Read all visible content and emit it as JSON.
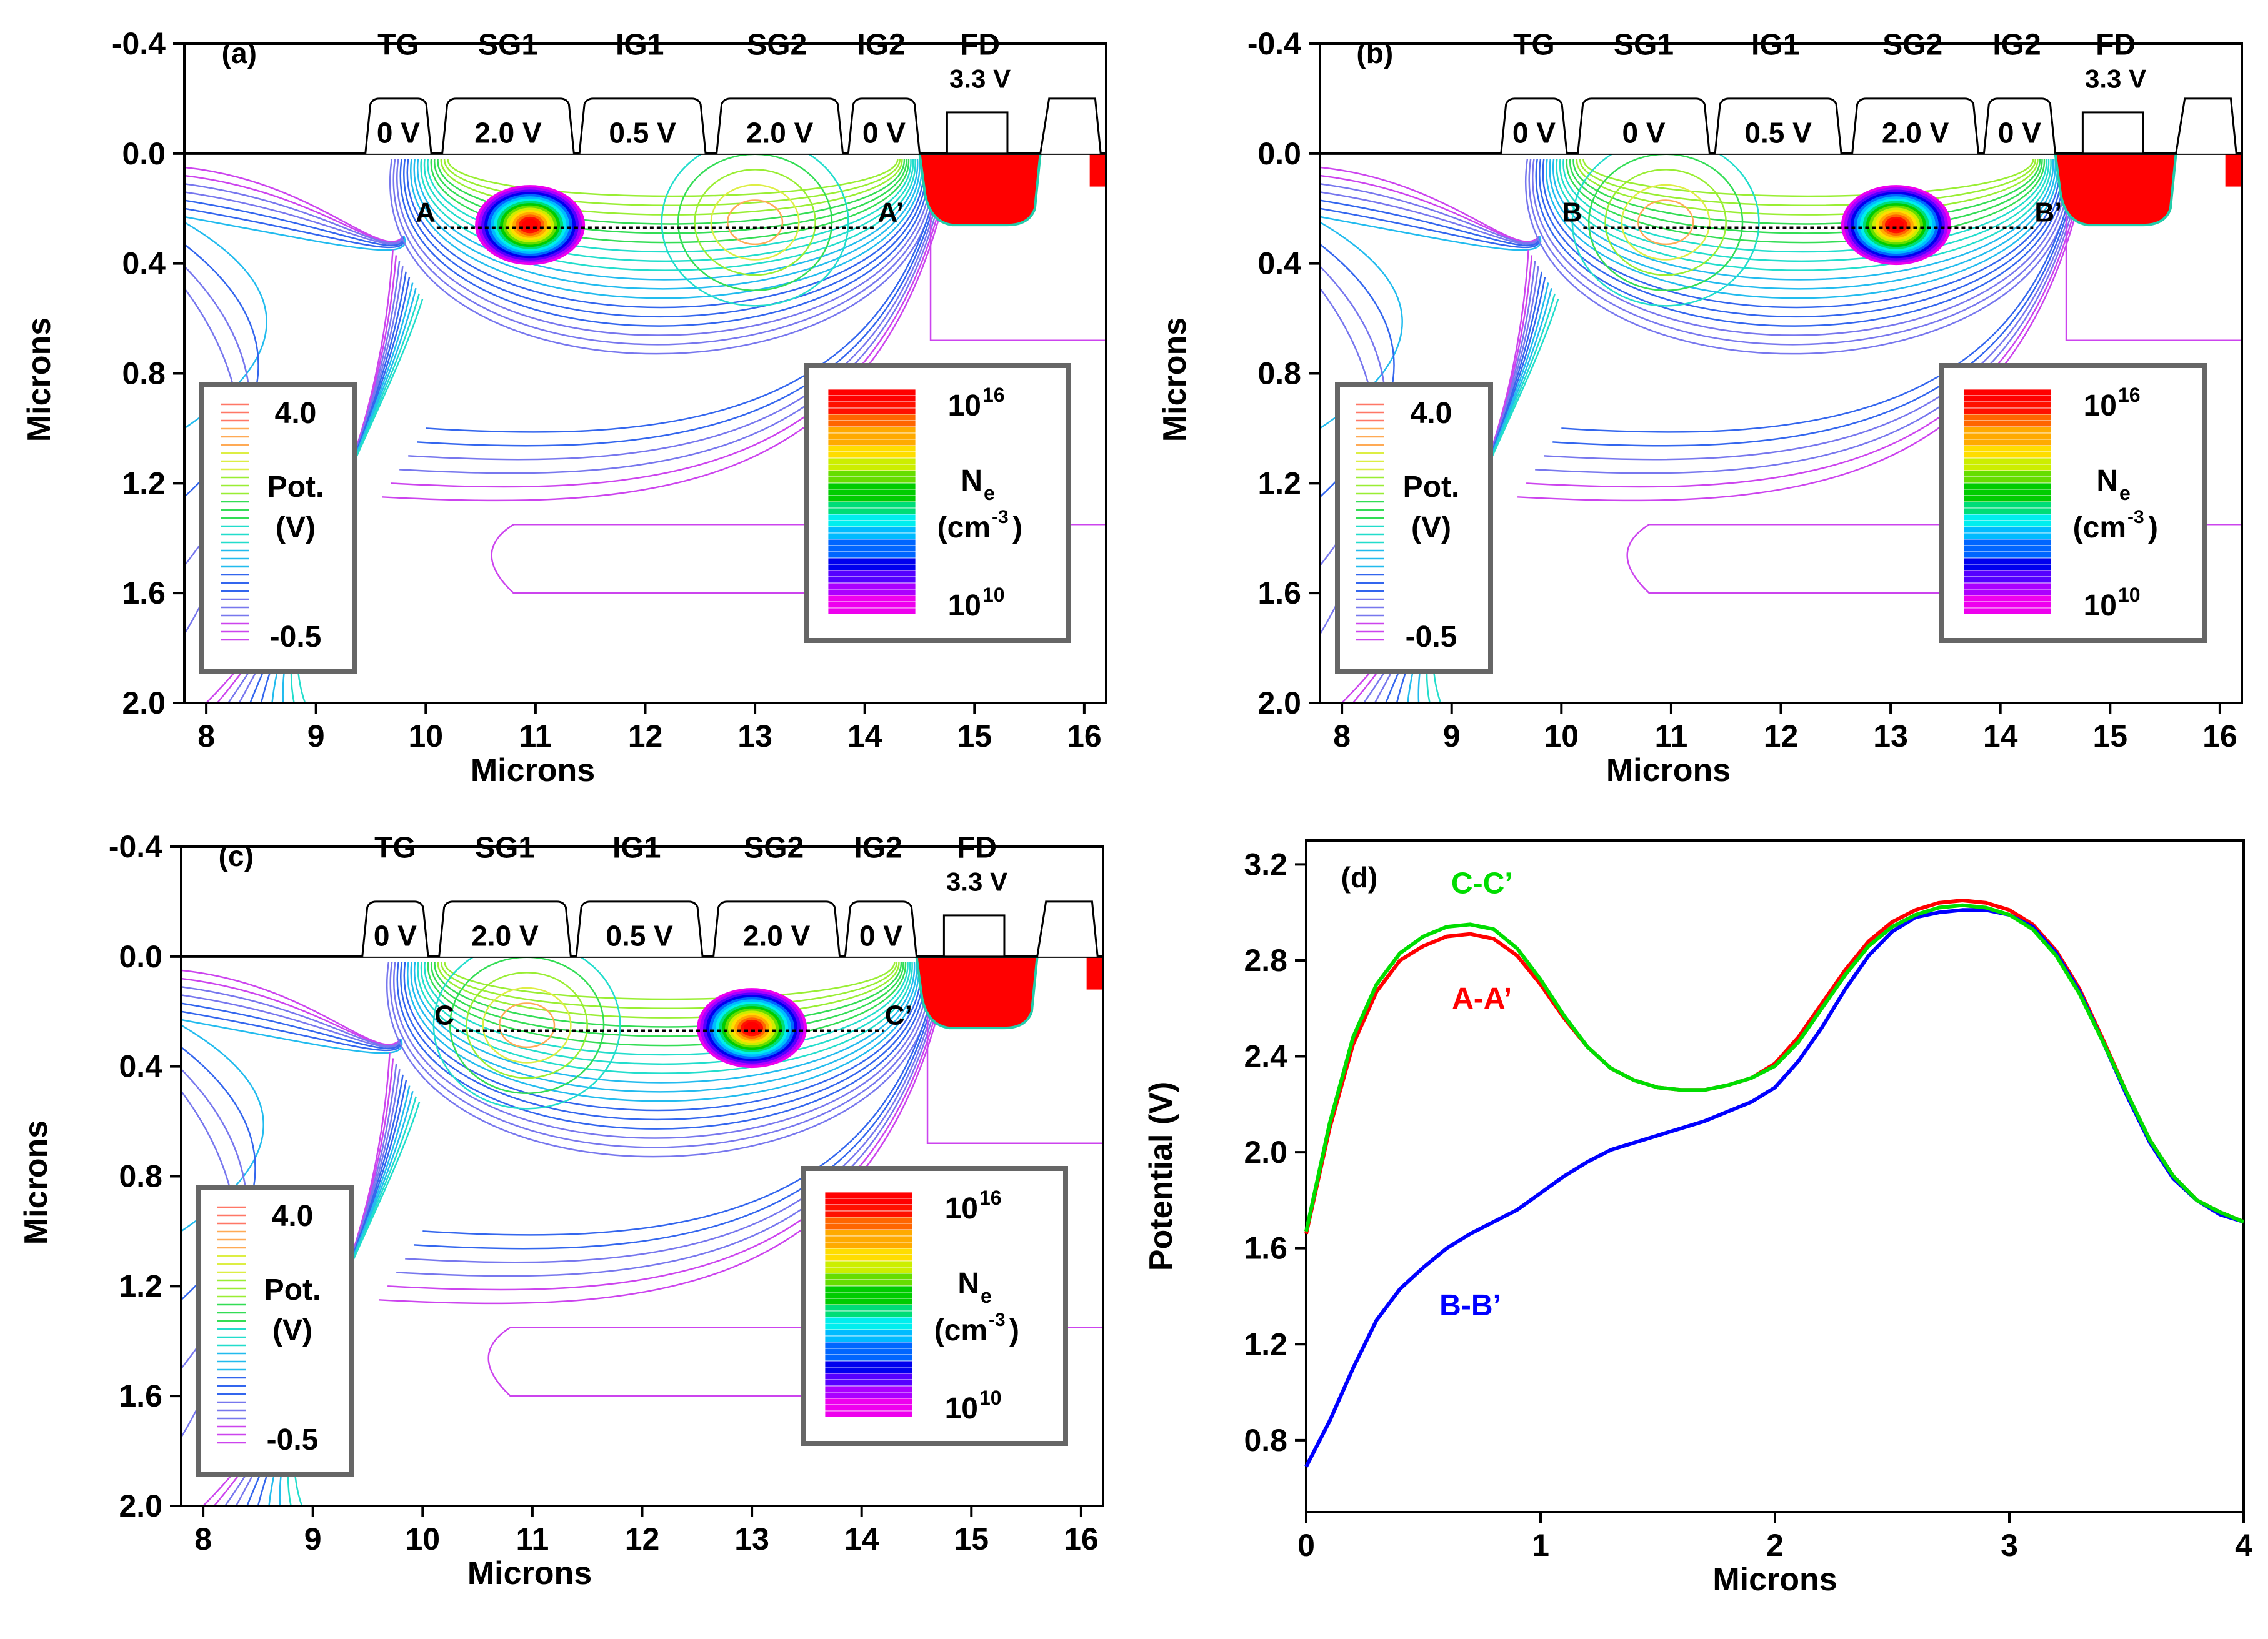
{
  "figure": {
    "panels": [
      {
        "id": "a",
        "label": "(a)",
        "gate_names": [
          "TG",
          "SG1",
          "IG1",
          "SG2",
          "IG2",
          "FD"
        ],
        "gate_voltages": [
          "0 V",
          "2.0 V",
          "0.5 V",
          "2.0 V",
          "0 V"
        ],
        "fd_voltage": "3.3 V",
        "cut_start": "A",
        "cut_end": "A’",
        "cut_x_range": [
          10.1,
          14.1
        ],
        "cut_depth": 0.27,
        "charge_center": [
          10.95,
          0.26
        ],
        "xlabel": "Microns",
        "ylabel": "Microns"
      },
      {
        "id": "b",
        "label": "(b)",
        "gate_names": [
          "TG",
          "SG1",
          "IG1",
          "SG2",
          "IG2",
          "FD"
        ],
        "gate_voltages": [
          "0 V",
          "0 V",
          "0.5 V",
          "2.0 V",
          "0 V"
        ],
        "fd_voltage": "3.3 V",
        "cut_start": "B",
        "cut_end": "B’",
        "cut_x_range": [
          10.2,
          14.3
        ],
        "cut_depth": 0.27,
        "charge_center": [
          13.05,
          0.26
        ],
        "xlabel": "Microns",
        "ylabel": "Microns"
      },
      {
        "id": "c",
        "label": "(c)",
        "gate_names": [
          "TG",
          "SG1",
          "IG1",
          "SG2",
          "IG2",
          "FD"
        ],
        "gate_voltages": [
          "0 V",
          "2.0 V",
          "0.5 V",
          "2.0 V",
          "0 V"
        ],
        "fd_voltage": "3.3 V",
        "cut_start": "C",
        "cut_end": "C’",
        "cut_x_range": [
          10.3,
          14.2
        ],
        "cut_depth": 0.27,
        "charge_center": [
          13.0,
          0.26
        ],
        "xlabel": "Microns",
        "ylabel": "Microns"
      }
    ],
    "axis": {
      "x_ticks": [
        "8",
        "9",
        "10",
        "11",
        "12",
        "13",
        "14",
        "15",
        "16"
      ],
      "y_ticks": [
        "-0.4",
        "0.0",
        "0.4",
        "0.8",
        "1.2",
        "1.6",
        "2.0"
      ],
      "xlim": [
        7.8,
        16.2
      ],
      "ylim": [
        -0.4,
        2.0
      ]
    },
    "legend_potential": {
      "top_value": "4.0",
      "title": "Pot.",
      "unit": "(V)",
      "bottom_value": "-0.5"
    },
    "legend_density": {
      "top_base": "10",
      "top_exp": "16",
      "symbol": "N",
      "symbol_sub": "e",
      "unit_open": "(cm",
      "unit_exp": "-3",
      "unit_close": ")",
      "bottom_base": "10",
      "bottom_exp": "10"
    },
    "colors": {
      "contour_palette": [
        "#cc44ee",
        "#7777ee",
        "#3366ee",
        "#22bbee",
        "#22ddcc",
        "#33dd55",
        "#99ee33",
        "#ddee44",
        "#ffaa55",
        "#ff7766"
      ],
      "density_palette": [
        "#ee00ee",
        "#aa00ff",
        "#5500ff",
        "#0000ee",
        "#0066ff",
        "#00bbff",
        "#00eeee",
        "#00dd77",
        "#00cc00",
        "#66dd00",
        "#ccee00",
        "#ffdd00",
        "#ffaa00",
        "#ff6600",
        "#ff1100",
        "#ff0000"
      ],
      "red": "#ff0000",
      "blue": "#0000ff",
      "green": "#00dd00"
    }
  },
  "chart_data": {
    "type": "line",
    "panel_label": "(d)",
    "title": "",
    "xlabel": "Microns",
    "ylabel": "Potential (V)",
    "xlim": [
      0,
      4
    ],
    "ylim": [
      0.5,
      3.3
    ],
    "x_ticks": [
      "0",
      "1",
      "2",
      "3",
      "4"
    ],
    "y_ticks": [
      "0.8",
      "1.2",
      "1.6",
      "2.0",
      "2.4",
      "2.8",
      "3.2"
    ],
    "series": [
      {
        "name": "A-A’",
        "color": "#ff0000",
        "x": [
          0,
          0.1,
          0.2,
          0.3,
          0.4,
          0.5,
          0.6,
          0.7,
          0.8,
          0.9,
          1.0,
          1.1,
          1.2,
          1.3,
          1.4,
          1.5,
          1.6,
          1.7,
          1.8,
          1.9,
          2.0,
          2.1,
          2.2,
          2.3,
          2.4,
          2.5,
          2.6,
          2.7,
          2.8,
          2.9,
          3.0,
          3.1,
          3.2,
          3.3,
          3.4,
          3.5,
          3.6,
          3.7,
          3.8,
          3.9,
          4.0
        ],
        "y": [
          1.66,
          2.1,
          2.45,
          2.67,
          2.8,
          2.86,
          2.9,
          2.91,
          2.89,
          2.82,
          2.7,
          2.56,
          2.44,
          2.35,
          2.3,
          2.27,
          2.26,
          2.26,
          2.28,
          2.31,
          2.37,
          2.48,
          2.62,
          2.76,
          2.88,
          2.96,
          3.01,
          3.04,
          3.05,
          3.04,
          3.01,
          2.95,
          2.84,
          2.68,
          2.47,
          2.25,
          2.05,
          1.9,
          1.8,
          1.75,
          1.71
        ]
      },
      {
        "name": "B-B’",
        "color": "#0000ff",
        "x": [
          0,
          0.1,
          0.2,
          0.3,
          0.4,
          0.5,
          0.6,
          0.7,
          0.8,
          0.9,
          1.0,
          1.1,
          1.2,
          1.3,
          1.4,
          1.5,
          1.6,
          1.7,
          1.8,
          1.9,
          2.0,
          2.1,
          2.2,
          2.3,
          2.4,
          2.5,
          2.6,
          2.7,
          2.8,
          2.9,
          3.0,
          3.1,
          3.2,
          3.3,
          3.4,
          3.5,
          3.6,
          3.7,
          3.8,
          3.9,
          4.0
        ],
        "y": [
          0.69,
          0.88,
          1.1,
          1.3,
          1.43,
          1.52,
          1.6,
          1.66,
          1.71,
          1.76,
          1.83,
          1.9,
          1.96,
          2.01,
          2.04,
          2.07,
          2.1,
          2.13,
          2.17,
          2.21,
          2.27,
          2.38,
          2.52,
          2.68,
          2.82,
          2.92,
          2.98,
          3.0,
          3.01,
          3.01,
          2.99,
          2.94,
          2.83,
          2.67,
          2.46,
          2.24,
          2.04,
          1.89,
          1.8,
          1.74,
          1.71
        ]
      },
      {
        "name": "C-C’",
        "color": "#00dd00",
        "x": [
          0,
          0.1,
          0.2,
          0.3,
          0.4,
          0.5,
          0.6,
          0.7,
          0.8,
          0.9,
          1.0,
          1.1,
          1.2,
          1.3,
          1.4,
          1.5,
          1.6,
          1.7,
          1.8,
          1.9,
          2.0,
          2.1,
          2.2,
          2.3,
          2.4,
          2.5,
          2.6,
          2.7,
          2.8,
          2.9,
          3.0,
          3.1,
          3.2,
          3.3,
          3.4,
          3.5,
          3.6,
          3.7,
          3.8,
          3.9,
          4.0
        ],
        "y": [
          1.67,
          2.12,
          2.48,
          2.7,
          2.83,
          2.9,
          2.94,
          2.95,
          2.93,
          2.85,
          2.72,
          2.57,
          2.44,
          2.35,
          2.3,
          2.27,
          2.26,
          2.26,
          2.28,
          2.31,
          2.36,
          2.46,
          2.6,
          2.74,
          2.86,
          2.94,
          2.99,
          3.02,
          3.03,
          3.02,
          2.99,
          2.93,
          2.82,
          2.66,
          2.46,
          2.25,
          2.05,
          1.9,
          1.8,
          1.75,
          1.71
        ]
      }
    ]
  }
}
